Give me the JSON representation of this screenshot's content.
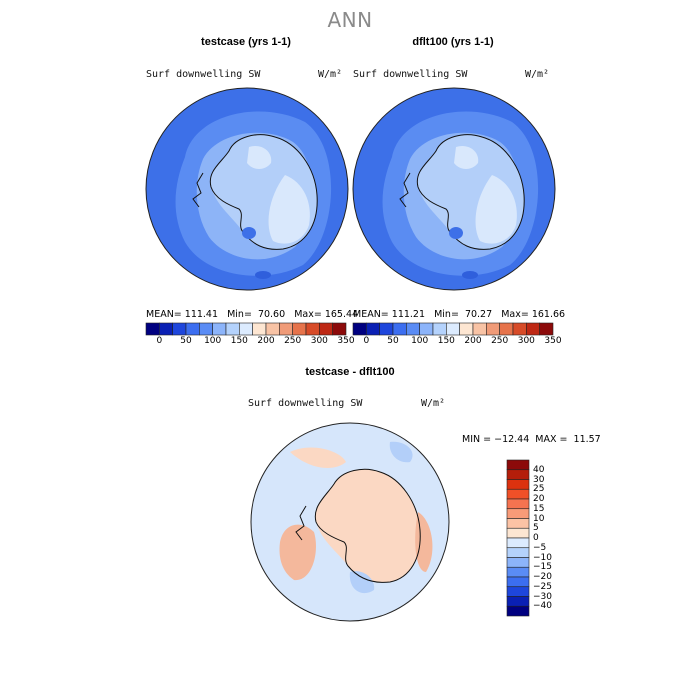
{
  "figure": {
    "title": "ANN"
  },
  "panels": [
    {
      "title": "testcase (yrs 1-1)",
      "variable": "Surf downwelling SW",
      "units": "W/m²",
      "stats": "MEAN= 111.41   Min=  70.60   Max= 165.44"
    },
    {
      "title": "dflt100 (yrs 1-1)",
      "variable": "Surf downwelling SW",
      "units": "W/m²",
      "stats": "MEAN= 111.21   Min=  70.27   Max= 161.66"
    },
    {
      "title": "testcase - dflt100",
      "variable": "Surf downwelling SW",
      "units": "W/m²",
      "stats": "MIN = −12.44  MAX =  11.57"
    }
  ],
  "colorbar_abs": {
    "tick_labels": [
      "0",
      "50",
      "100",
      "150",
      "200",
      "250",
      "300",
      "350"
    ],
    "colors": [
      "#000080",
      "#0a20b4",
      "#1e46dc",
      "#3c6ef0",
      "#5a8cf5",
      "#8cb4fa",
      "#b4d2fc",
      "#dcebfe",
      "#fde6d2",
      "#f8c3a5",
      "#f09b78",
      "#e6734b",
      "#d74b28",
      "#be2814",
      "#8c0a0a"
    ]
  },
  "colorbar_diff": {
    "labels": [
      "40",
      "30",
      "25",
      "20",
      "15",
      "10",
      "5",
      "0",
      "−5",
      "−10",
      "−15",
      "−20",
      "−25",
      "−30",
      "−40"
    ],
    "colors": [
      "#8c0a0a",
      "#b41e0a",
      "#dc320f",
      "#f05028",
      "#f57350",
      "#f89b78",
      "#fcc3a5",
      "#fde6d2",
      "#dcebfe",
      "#b4d2fc",
      "#8cb4fa",
      "#5a8cf5",
      "#3c6ef0",
      "#1e46dc",
      "#0a20b4",
      "#000080"
    ]
  },
  "map_colors": {
    "ocean_outer": "#3d70e8",
    "ocean_mid": "#5a8cf2",
    "ice_shelf": "#8db4f7",
    "land_low": "#b3cff9",
    "land_high": "#d9e8fc",
    "diff_pos": "#fbd8c3",
    "diff_pos_strong": "#f4b89c",
    "diff_neg": "#d6e6fb",
    "diff_neg_strong": "#b3cff9"
  }
}
